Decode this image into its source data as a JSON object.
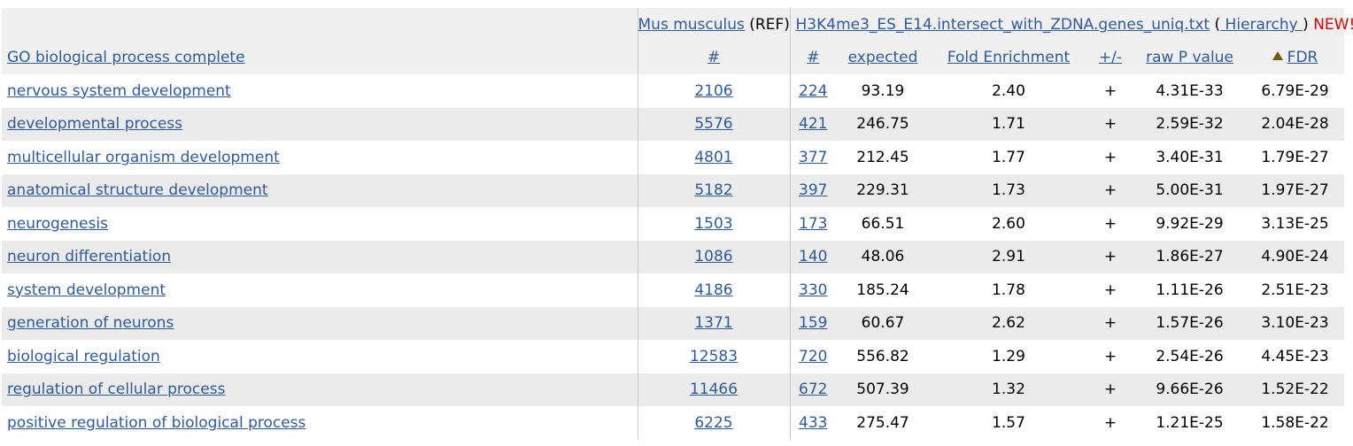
{
  "header": {
    "ref_organism": "Mus musculus",
    "ref_tag": "(REF)",
    "file_name": "H3K4me3_ES_E14.intersect_with_ZDNA.genes_uniq.txt",
    "open_paren": "(",
    "hierarchy_label": " Hierarchy ",
    "close_paren": ")",
    "new_label": "NEW!",
    "help_glyph": "?",
    "help_close": ")"
  },
  "columns": {
    "go_term": "GO biological process complete",
    "ref_count": "#",
    "count": "#",
    "expected": "expected",
    "fold": "Fold Enrichment",
    "direction": "+/-",
    "raw_p": "raw P value",
    "fdr": "FDR"
  },
  "rows": [
    {
      "term": "nervous system development",
      "ref": "2106",
      "count": "224",
      "expected": "93.19",
      "fold": "2.40",
      "dir": "+",
      "p": "4.31E-33",
      "fdr": "6.79E-29"
    },
    {
      "term": "developmental process",
      "ref": "5576",
      "count": "421",
      "expected": "246.75",
      "fold": "1.71",
      "dir": "+",
      "p": "2.59E-32",
      "fdr": "2.04E-28"
    },
    {
      "term": "multicellular organism development",
      "ref": "4801",
      "count": "377",
      "expected": "212.45",
      "fold": "1.77",
      "dir": "+",
      "p": "3.40E-31",
      "fdr": "1.79E-27"
    },
    {
      "term": "anatomical structure development",
      "ref": "5182",
      "count": "397",
      "expected": "229.31",
      "fold": "1.73",
      "dir": "+",
      "p": "5.00E-31",
      "fdr": "1.97E-27"
    },
    {
      "term": "neurogenesis",
      "ref": "1503",
      "count": "173",
      "expected": "66.51",
      "fold": "2.60",
      "dir": "+",
      "p": "9.92E-29",
      "fdr": "3.13E-25"
    },
    {
      "term": "neuron differentiation",
      "ref": "1086",
      "count": "140",
      "expected": "48.06",
      "fold": "2.91",
      "dir": "+",
      "p": "1.86E-27",
      "fdr": "4.90E-24"
    },
    {
      "term": "system development",
      "ref": "4186",
      "count": "330",
      "expected": "185.24",
      "fold": "1.78",
      "dir": "+",
      "p": "1.11E-26",
      "fdr": "2.51E-23"
    },
    {
      "term": "generation of neurons",
      "ref": "1371",
      "count": "159",
      "expected": "60.67",
      "fold": "2.62",
      "dir": "+",
      "p": "1.57E-26",
      "fdr": "3.10E-23"
    },
    {
      "term": "biological regulation",
      "ref": "12583",
      "count": "720",
      "expected": "556.82",
      "fold": "1.29",
      "dir": "+",
      "p": "2.54E-26",
      "fdr": "4.45E-23"
    },
    {
      "term": "regulation of cellular process",
      "ref": "11466",
      "count": "672",
      "expected": "507.39",
      "fold": "1.32",
      "dir": "+",
      "p": "9.66E-26",
      "fdr": "1.52E-22"
    },
    {
      "term": "positive regulation of biological process",
      "ref": "6225",
      "count": "433",
      "expected": "275.47",
      "fold": "1.57",
      "dir": "+",
      "p": "1.21E-25",
      "fdr": "1.58E-22"
    }
  ],
  "icons": {
    "help": "help-icon",
    "sort": "sort-asc-icon"
  },
  "colors": {
    "link": "#2f5a9c",
    "new": "#e00000",
    "row_alt": "#ebebeb",
    "header_bg": "#f0f0f0"
  }
}
